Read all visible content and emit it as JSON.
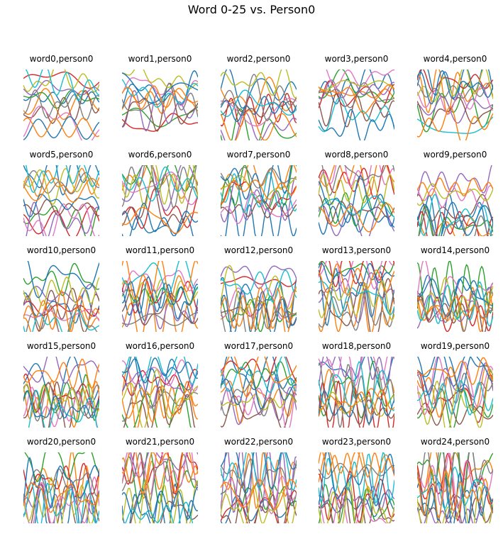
{
  "chart_data": {
    "type": "line",
    "title": "Word 0-25 vs. Person0",
    "grid": false,
    "axes_visible": false,
    "palette": [
      "#1f77b4",
      "#ff7f0e",
      "#2ca02c",
      "#d62728",
      "#9467bd",
      "#8c564b",
      "#e377c2",
      "#7f7f7f",
      "#bcbd22",
      "#17becf"
    ],
    "lines_per_panel": 12,
    "panels": [
      {
        "title": "word0,person0"
      },
      {
        "title": "word1,person0"
      },
      {
        "title": "word2,person0"
      },
      {
        "title": "word3,person0"
      },
      {
        "title": "word4,person0"
      },
      {
        "title": "word5,person0"
      },
      {
        "title": "word6,person0"
      },
      {
        "title": "word7,person0"
      },
      {
        "title": "word8,person0"
      },
      {
        "title": "word9,person0"
      },
      {
        "title": "word10,person0"
      },
      {
        "title": "word11,person0"
      },
      {
        "title": "word12,person0"
      },
      {
        "title": "word13,person0"
      },
      {
        "title": "word14,person0"
      },
      {
        "title": "word15,person0"
      },
      {
        "title": "word16,person0"
      },
      {
        "title": "word17,person0"
      },
      {
        "title": "word18,person0"
      },
      {
        "title": "word19,person0"
      },
      {
        "title": "word20,person0"
      },
      {
        "title": "word21,person0"
      },
      {
        "title": "word22,person0"
      },
      {
        "title": "word23,person0"
      },
      {
        "title": "word24,person0"
      }
    ]
  }
}
